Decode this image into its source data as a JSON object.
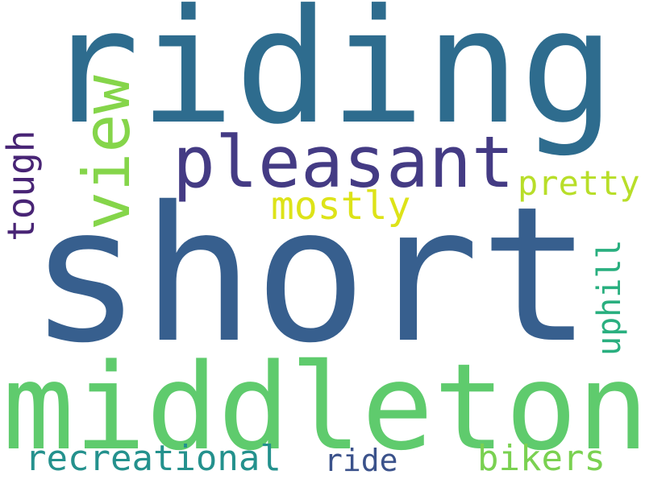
{
  "words": [
    {
      "text": "short",
      "color": "#375f8e"
    },
    {
      "text": "riding",
      "color": "#2e6c8e"
    },
    {
      "text": "middleton",
      "color": "#5fcb6d"
    },
    {
      "text": "pleasant",
      "color": "#443b84"
    },
    {
      "text": "view",
      "color": "#85d54a"
    },
    {
      "text": "tough",
      "color": "#482475"
    },
    {
      "text": "mostly",
      "color": "#dde318"
    },
    {
      "text": "pretty",
      "color": "#b8de29"
    },
    {
      "text": "uphill",
      "color": "#29af7f"
    },
    {
      "text": "recreational",
      "color": "#24918d"
    },
    {
      "text": "ride",
      "color": "#3b528b"
    },
    {
      "text": "bikers",
      "color": "#7ad151"
    }
  ]
}
